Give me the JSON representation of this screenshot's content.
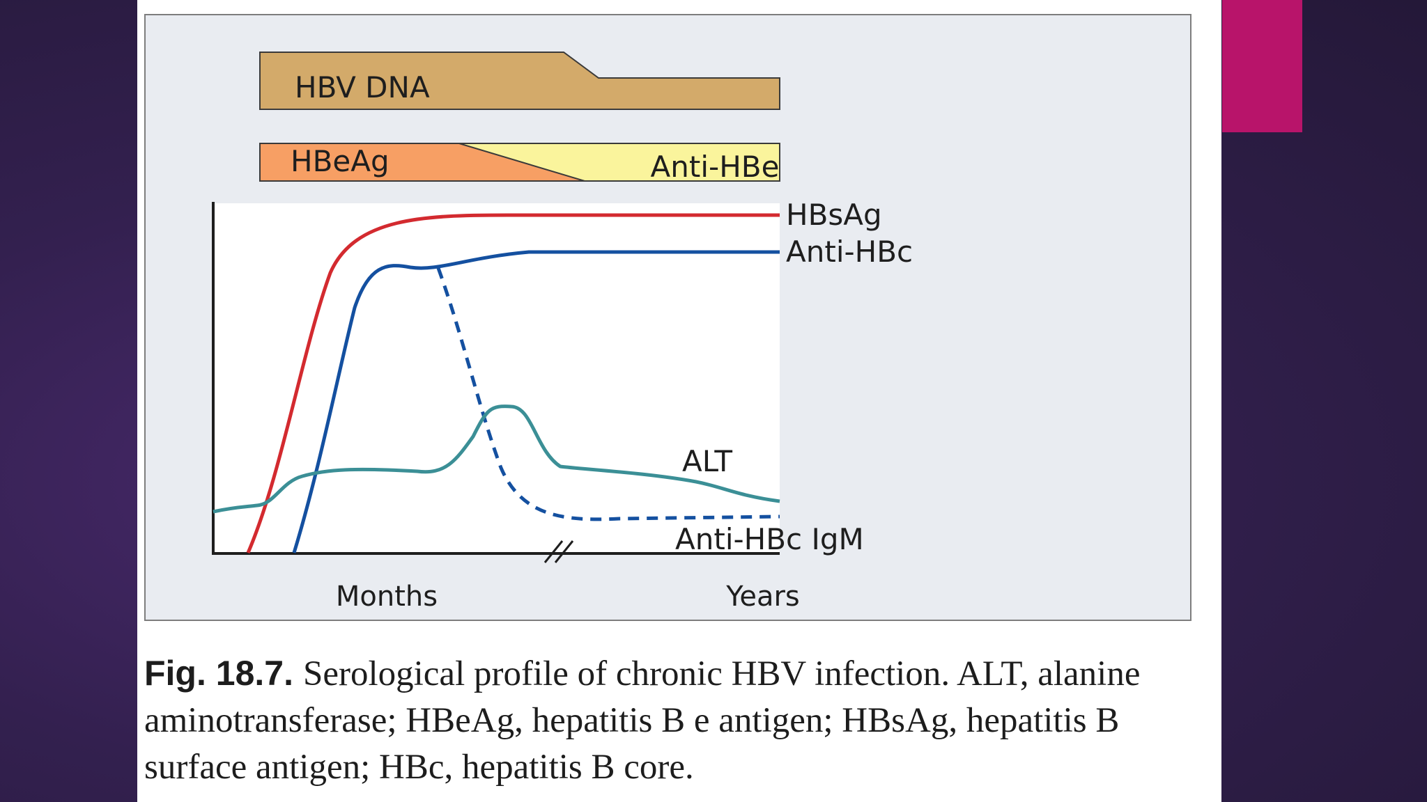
{
  "colors": {
    "background": "#2f1f4a",
    "accent": "#b8146a",
    "panel": "#e9ecf1",
    "hbv_dna_bar": "#d3aa6a",
    "hbeag_bar": "#f79f64",
    "anti_hbe_bar": "#faf49c",
    "hbsag_line": "#d32a2f",
    "anti_hbc_line": "#1450a0",
    "alt_line": "#3b8f96"
  },
  "figure": {
    "bars": {
      "hbv_dna": "HBV DNA",
      "hbeag": "HBeAg",
      "anti_hbe": "Anti-HBe"
    },
    "series": {
      "hbsag": "HBsAg",
      "anti_hbc": "Anti-HBc",
      "alt": "ALT",
      "anti_hbc_igm": "Anti-HBc IgM"
    },
    "axis": {
      "months": "Months",
      "years": "Years"
    }
  },
  "caption": {
    "fig_number": "Fig. 18.7.",
    "text": "Serological profile of chronic HBV infection. ALT, alanine aminotransferase; HBeAg, hepatitis B e antigen; HBsAg, hepatitis B surface antigen; HBc, hepatitis B core."
  }
}
